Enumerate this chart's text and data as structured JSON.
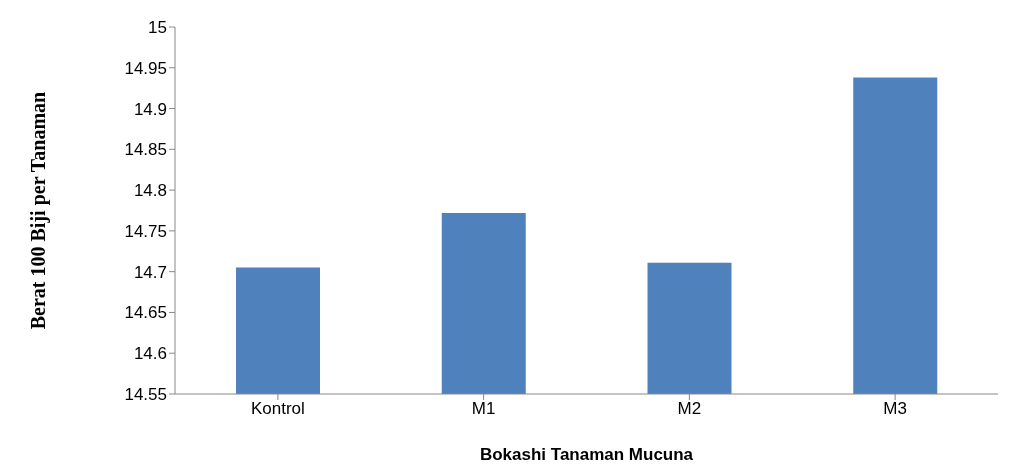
{
  "chart_data": {
    "type": "bar",
    "xlabel": "Bokashi Tanaman Mucuna",
    "ylabel": "Berat 100 Biji per Tanaman",
    "categories": [
      "Kontrol",
      "M1",
      "M2",
      "M3"
    ],
    "values": [
      14.705,
      14.772,
      14.711,
      14.938
    ],
    "color": "#4f81bd",
    "ylim": [
      14.55,
      15
    ],
    "yticks": [
      14.55,
      14.6,
      14.65,
      14.7,
      14.75,
      14.8,
      14.85,
      14.9,
      14.95,
      15
    ],
    "grid": false,
    "legend": false
  }
}
